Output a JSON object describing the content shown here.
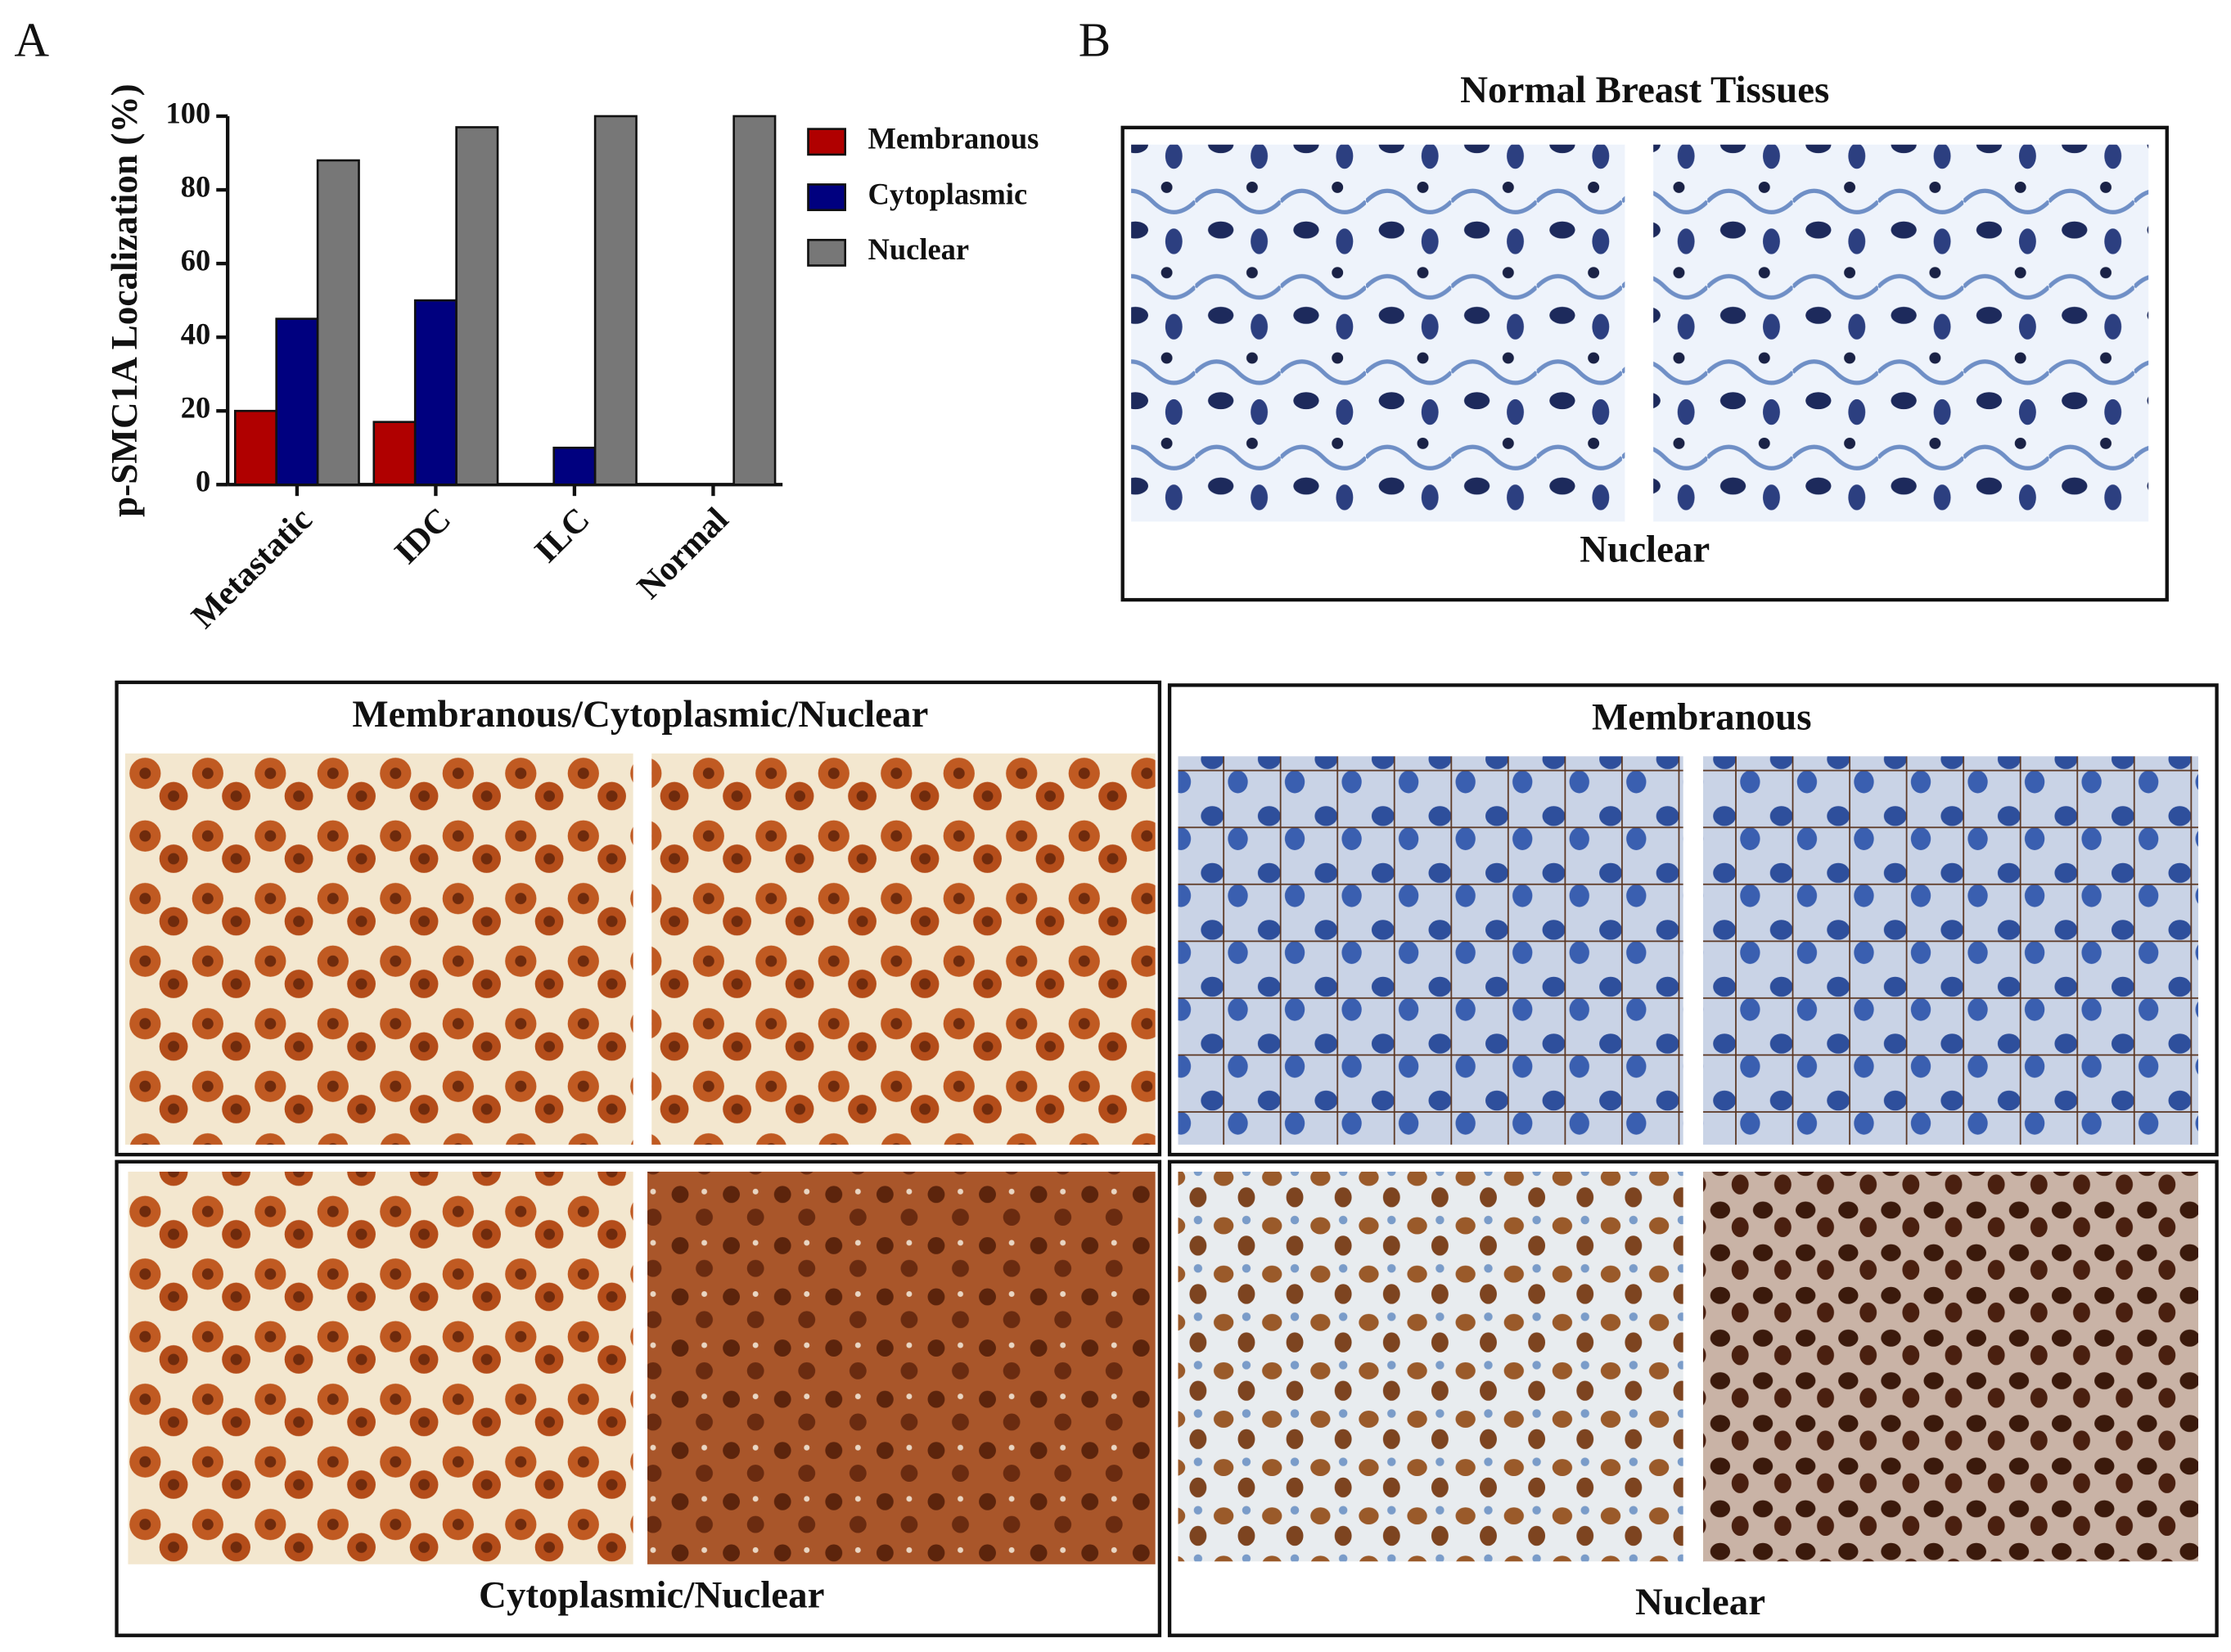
{
  "panel_labels": [
    "A",
    "B"
  ],
  "chart_data": {
    "type": "bar",
    "ylabel": "p-SMC1A Localization (%)",
    "categories": [
      "Metastatic",
      "IDC",
      "ILC",
      "Normal"
    ],
    "series": [
      {
        "name": "Membranous",
        "color": "#b00000",
        "values": [
          20,
          17,
          0,
          0
        ]
      },
      {
        "name": "Cytoplasmic",
        "color": "#00007f",
        "values": [
          45,
          50,
          10,
          0
        ]
      },
      {
        "name": "Nuclear",
        "color": "#777777",
        "values": [
          88,
          97,
          100,
          100
        ]
      }
    ],
    "ylim": [
      0,
      100
    ],
    "yticks": [
      0,
      20,
      40,
      60,
      80,
      100
    ]
  },
  "panels": [
    {
      "title": "Normal Breast Tissues",
      "caption": "Nuclear"
    },
    {
      "title": "Membranous/Cytoplasmic/Nuclear"
    },
    {
      "title": "Membranous"
    },
    {
      "caption": "Cytoplasmic/Nuclear"
    },
    {
      "caption": "Nuclear"
    }
  ]
}
